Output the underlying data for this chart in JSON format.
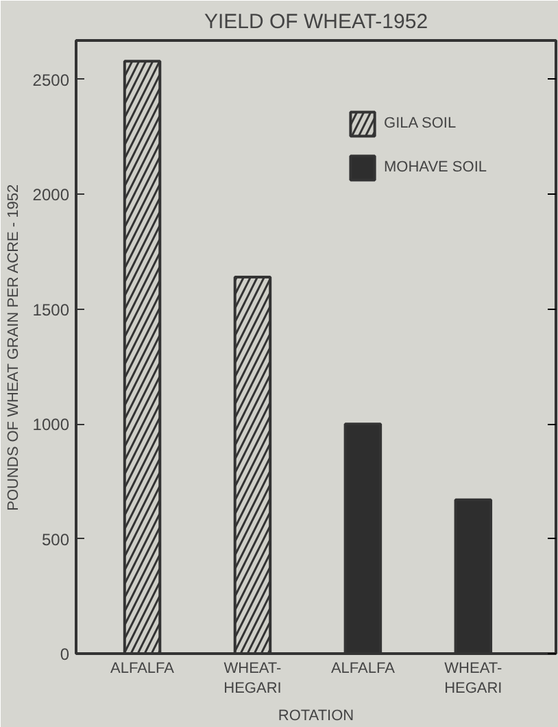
{
  "chart_data": {
    "type": "bar",
    "title": "YIELD OF WHEAT-1952",
    "xlabel": "ROTATION",
    "ylabel": "POUNDS OF WHEAT GRAIN PER ACRE - 1952",
    "categories": [
      "ALFALFA",
      "WHEAT-\nHEGARI",
      "ALFALFA",
      "WHEAT-\nHEGARI"
    ],
    "series": [
      {
        "name": "GILA SOIL",
        "color": "#cfcfc8",
        "values": [
          2580,
          1640,
          null,
          null
        ]
      },
      {
        "name": "MOHAVE SOIL",
        "color": "#2e2e2e",
        "values": [
          null,
          null,
          1000,
          670
        ]
      }
    ],
    "ylim": [
      0,
      2670
    ],
    "yticks": [
      0,
      500,
      1000,
      1500,
      2000,
      2500
    ],
    "grid": false,
    "legend": "top right"
  }
}
